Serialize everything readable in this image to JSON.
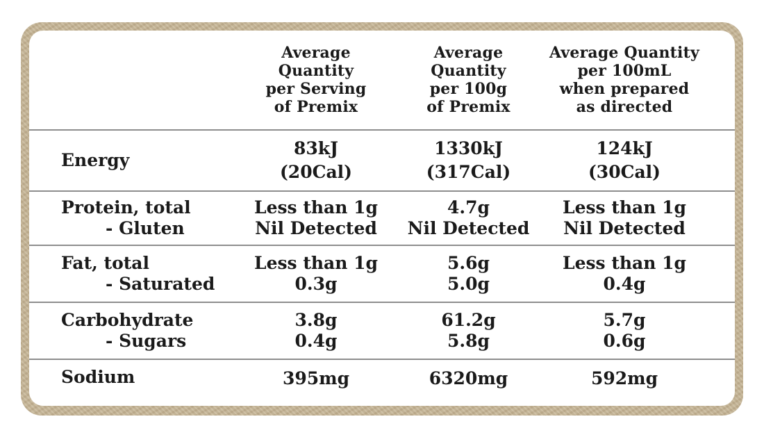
{
  "columns": [
    {
      "header": "Average\nQuantity\nper Serving\nof Premix"
    },
    {
      "header": "Average\nQuantity\nper 100g\nof Premix"
    },
    {
      "header": "Average Quantity\nper 100mL\nwhen prepared\nas directed"
    }
  ],
  "rows": [
    {
      "label": "Energy",
      "sublabel": "",
      "values": [
        [
          "83kJ",
          "(20Cal)"
        ],
        [
          "1330kJ",
          "(317Cal)"
        ],
        [
          "124kJ",
          "(30Cal)"
        ]
      ]
    },
    {
      "label": "Protein, total",
      "sublabel": "- Gluten",
      "values": [
        [
          "Less than 1g",
          "Nil Detected"
        ],
        [
          "4.7g",
          "Nil Detected"
        ],
        [
          "Less than 1g",
          "Nil Detected"
        ]
      ]
    },
    {
      "label": "Fat, total",
      "sublabel": "- Saturated",
      "values": [
        [
          "Less than 1g",
          "0.3g"
        ],
        [
          "5.6g",
          "5.0g"
        ],
        [
          "Less than 1g",
          "0.4g"
        ]
      ]
    },
    {
      "label": "Carbohydrate",
      "sublabel": "- Sugars",
      "values": [
        [
          "3.8g",
          "0.4g"
        ],
        [
          "61.2g",
          "5.8g"
        ],
        [
          "5.7g",
          "0.6g"
        ]
      ]
    },
    {
      "label": "Sodium",
      "sublabel": "",
      "values": [
        [
          "395mg"
        ],
        [
          "6320mg"
        ],
        [
          "592mg"
        ]
      ]
    }
  ],
  "colors": {
    "frame": "#c7b696",
    "panel": "#ffffff",
    "rule": "#8d8d8d",
    "text": "#1a1a1a"
  }
}
